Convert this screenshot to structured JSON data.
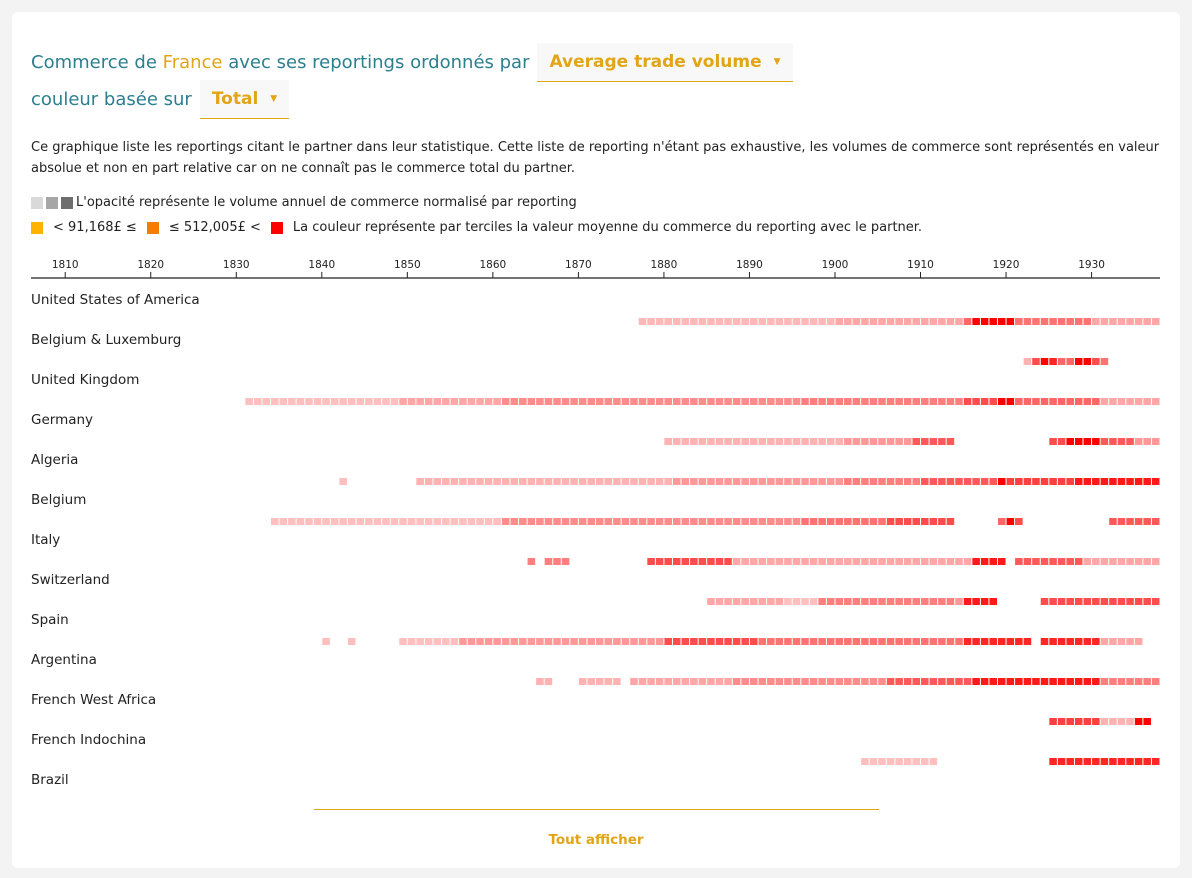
{
  "header": {
    "prefix": "Commerce de",
    "partner": "France",
    "middle": "avec ses reportings ordonnés par",
    "order_select": "Average trade volume",
    "color_prefix": "couleur basée sur",
    "color_select": "Total"
  },
  "description": "Ce graphique liste les reportings citant le partner dans leur statistique. Cette liste de reporting n'étant pas exhaustive, les volumes de commerce sont représentés en valeur absolue et non en part relative car on ne connaît pas le commerce total du partner.",
  "legend": {
    "opacity_text": "L'opacité représente le volume annuel de commerce normalisé par reporting",
    "opacity_colors": [
      "#d9d9d9",
      "#a6a6a6",
      "#6e6e6e"
    ],
    "threshold_low": "< 91,168£ ≤",
    "threshold_high": "≤ 512,005£ <",
    "color_text": "La couleur représente par terciles la valeur moyenne du commerce du reporting avec le partner.",
    "tercile_colors": [
      "#ffb300",
      "#f57c00",
      "#ff0000"
    ]
  },
  "chart_data": {
    "type": "heatmap",
    "x_range": [
      1806,
      1938
    ],
    "ticks": [
      1810,
      1820,
      1830,
      1840,
      1850,
      1860,
      1870,
      1880,
      1890,
      1900,
      1910,
      1920,
      1930
    ],
    "color": "#ff0000",
    "value_note": "runs: [start_year, end_year, opacity]",
    "rows": [
      {
        "name": "United States of America",
        "runs": [
          [
            1877,
            1899,
            0.28
          ],
          [
            1900,
            1914,
            0.35
          ],
          [
            1915,
            1915,
            0.6
          ],
          [
            1916,
            1920,
            1
          ],
          [
            1921,
            1929,
            0.55
          ],
          [
            1930,
            1937,
            0.35
          ]
        ]
      },
      {
        "name": "Belgium & Luxemburg",
        "runs": [
          [
            1922,
            1922,
            0.3
          ],
          [
            1923,
            1923,
            0.7
          ],
          [
            1924,
            1924,
            1
          ],
          [
            1925,
            1925,
            0.85
          ],
          [
            1926,
            1927,
            0.6
          ],
          [
            1928,
            1929,
            1
          ],
          [
            1930,
            1930,
            0.7
          ],
          [
            1931,
            1931,
            0.55
          ]
        ]
      },
      {
        "name": "United Kingdom",
        "runs": [
          [
            1831,
            1848,
            0.25
          ],
          [
            1849,
            1860,
            0.35
          ],
          [
            1861,
            1895,
            0.45
          ],
          [
            1896,
            1914,
            0.5
          ],
          [
            1915,
            1918,
            0.7
          ],
          [
            1919,
            1920,
            1
          ],
          [
            1921,
            1930,
            0.6
          ],
          [
            1931,
            1937,
            0.35
          ]
        ]
      },
      {
        "name": "Germany",
        "runs": [
          [
            1880,
            1900,
            0.3
          ],
          [
            1901,
            1908,
            0.4
          ],
          [
            1909,
            1913,
            0.65
          ],
          [
            1925,
            1926,
            0.7
          ],
          [
            1927,
            1930,
            1
          ],
          [
            1931,
            1934,
            0.65
          ],
          [
            1935,
            1937,
            0.4
          ]
        ]
      },
      {
        "name": "Algeria",
        "runs": [
          [
            1842,
            1842,
            0.25
          ],
          [
            1851,
            1880,
            0.3
          ],
          [
            1881,
            1900,
            0.4
          ],
          [
            1901,
            1909,
            0.5
          ],
          [
            1910,
            1918,
            0.65
          ],
          [
            1919,
            1919,
            1
          ],
          [
            1920,
            1927,
            0.75
          ],
          [
            1928,
            1937,
            0.9
          ]
        ]
      },
      {
        "name": "Belgium",
        "runs": [
          [
            1834,
            1860,
            0.25
          ],
          [
            1861,
            1895,
            0.45
          ],
          [
            1896,
            1905,
            0.55
          ],
          [
            1906,
            1913,
            0.7
          ],
          [
            1919,
            1919,
            0.6
          ],
          [
            1920,
            1920,
            1
          ],
          [
            1921,
            1921,
            0.7
          ],
          [
            1932,
            1937,
            0.65
          ]
        ]
      },
      {
        "name": "Italy",
        "runs": [
          [
            1864,
            1864,
            0.5
          ],
          [
            1866,
            1868,
            0.5
          ],
          [
            1878,
            1887,
            0.7
          ],
          [
            1888,
            1915,
            0.35
          ],
          [
            1916,
            1919,
            0.9
          ],
          [
            1921,
            1928,
            0.65
          ],
          [
            1929,
            1937,
            0.35
          ]
        ]
      },
      {
        "name": "Switzerland",
        "runs": [
          [
            1885,
            1893,
            0.35
          ],
          [
            1894,
            1897,
            0.25
          ],
          [
            1898,
            1913,
            0.5
          ],
          [
            1914,
            1914,
            0.4
          ],
          [
            1915,
            1918,
            0.9
          ],
          [
            1924,
            1937,
            0.7
          ]
        ]
      },
      {
        "name": "Spain",
        "runs": [
          [
            1840,
            1840,
            0.25
          ],
          [
            1843,
            1843,
            0.25
          ],
          [
            1849,
            1855,
            0.25
          ],
          [
            1856,
            1879,
            0.4
          ],
          [
            1880,
            1890,
            0.7
          ],
          [
            1891,
            1914,
            0.55
          ],
          [
            1915,
            1922,
            0.85
          ],
          [
            1924,
            1930,
            0.85
          ],
          [
            1931,
            1935,
            0.35
          ]
        ]
      },
      {
        "name": "Argentina",
        "runs": [
          [
            1865,
            1866,
            0.3
          ],
          [
            1870,
            1874,
            0.3
          ],
          [
            1876,
            1887,
            0.35
          ],
          [
            1888,
            1905,
            0.45
          ],
          [
            1906,
            1915,
            0.65
          ],
          [
            1916,
            1930,
            0.9
          ],
          [
            1931,
            1937,
            0.5
          ]
        ]
      },
      {
        "name": "French West Africa",
        "runs": [
          [
            1925,
            1930,
            0.75
          ],
          [
            1931,
            1934,
            0.3
          ],
          [
            1935,
            1936,
            1
          ]
        ]
      },
      {
        "name": "French Indochina",
        "runs": [
          [
            1903,
            1911,
            0.25
          ],
          [
            1925,
            1937,
            0.85
          ]
        ]
      },
      {
        "name": "Brazil",
        "runs": []
      }
    ]
  },
  "footer": {
    "show_all": "Tout afficher"
  }
}
